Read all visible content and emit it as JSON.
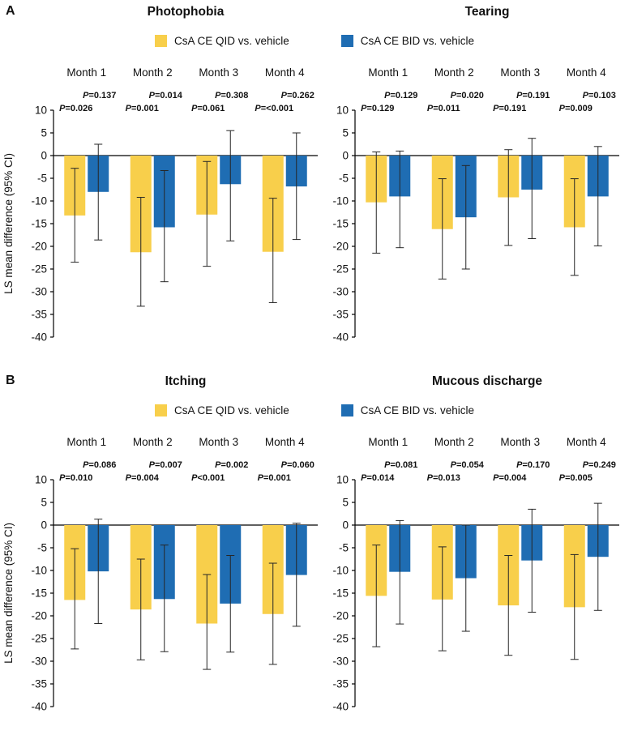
{
  "figure": {
    "panels": [
      {
        "label": "A"
      },
      {
        "label": "B"
      }
    ],
    "ylabel": "LS mean difference (95% CI)",
    "legend": [
      {
        "label": "CsA CE QID vs. vehicle",
        "color": "#F8CF4B"
      },
      {
        "label": "CsA CE BID vs. vehicle",
        "color": "#1F6DB3"
      }
    ]
  },
  "chart_data": [
    {
      "type": "bar",
      "panel": "A",
      "title": "Photophobia",
      "categories": [
        "Month 1",
        "Month 2",
        "Month 3",
        "Month 4"
      ],
      "ylabel": "LS mean difference (95% CI)",
      "ylim": [
        -40,
        10
      ],
      "yticks": [
        10,
        5,
        0,
        -5,
        -10,
        -15,
        -20,
        -25,
        -30,
        -35,
        -40
      ],
      "grid": false,
      "legend_position": "top",
      "series": [
        {
          "name": "CsA CE QID vs. vehicle",
          "color": "#F8CF4B",
          "values": [
            -13.2,
            -21.3,
            -13.0,
            -21.2
          ],
          "ci_low": [
            -23.5,
            -33.2,
            -24.4,
            -32.4
          ],
          "ci_high": [
            -2.8,
            -9.2,
            -1.3,
            -9.4
          ],
          "p_values": [
            "P=0.026",
            "P=0.001",
            "P=0.061",
            "P=<0.001"
          ]
        },
        {
          "name": "CsA CE BID vs. vehicle",
          "color": "#1F6DB3",
          "values": [
            -8.0,
            -15.8,
            -6.3,
            -6.8
          ],
          "ci_low": [
            -18.6,
            -27.8,
            -18.8,
            -18.5
          ],
          "ci_high": [
            2.5,
            -3.3,
            5.5,
            5.0
          ],
          "p_values": [
            "P=0.137",
            "P=0.014",
            "P=0.308",
            "P=0.262"
          ]
        }
      ]
    },
    {
      "type": "bar",
      "panel": "A",
      "title": "Tearing",
      "categories": [
        "Month 1",
        "Month 2",
        "Month 3",
        "Month 4"
      ],
      "ylabel": "LS mean difference (95% CI)",
      "ylim": [
        -40,
        10
      ],
      "yticks": [
        10,
        5,
        0,
        -5,
        -10,
        -15,
        -20,
        -25,
        -30,
        -35,
        -40
      ],
      "grid": false,
      "legend_position": "top",
      "series": [
        {
          "name": "CsA CE QID vs. vehicle",
          "color": "#F8CF4B",
          "values": [
            -10.3,
            -16.2,
            -9.2,
            -15.8
          ],
          "ci_low": [
            -21.5,
            -27.2,
            -19.8,
            -26.4
          ],
          "ci_high": [
            0.8,
            -5.1,
            1.3,
            -5.1
          ],
          "p_values": [
            "P=0.129",
            "P=0.011",
            "P=0.191",
            "P=0.009"
          ]
        },
        {
          "name": "CsA CE BID vs. vehicle",
          "color": "#1F6DB3",
          "values": [
            -9.0,
            -13.6,
            -7.5,
            -9.0
          ],
          "ci_low": [
            -20.3,
            -25.0,
            -18.3,
            -19.9
          ],
          "ci_high": [
            1.0,
            -2.2,
            3.8,
            2.0
          ],
          "p_values": [
            "P=0.129",
            "P=0.020",
            "P=0.191",
            "P=0.103"
          ]
        }
      ]
    },
    {
      "type": "bar",
      "panel": "B",
      "title": "Itching",
      "categories": [
        "Month 1",
        "Month 2",
        "Month 3",
        "Month 4"
      ],
      "ylabel": "LS mean difference (95% CI)",
      "ylim": [
        -40,
        10
      ],
      "yticks": [
        10,
        5,
        0,
        -5,
        -10,
        -15,
        -20,
        -25,
        -30,
        -35,
        -40
      ],
      "grid": false,
      "legend_position": "top",
      "series": [
        {
          "name": "CsA CE QID vs. vehicle",
          "color": "#F8CF4B",
          "values": [
            -16.5,
            -18.6,
            -21.7,
            -19.6
          ],
          "ci_low": [
            -27.3,
            -29.7,
            -31.8,
            -30.7
          ],
          "ci_high": [
            -5.2,
            -7.5,
            -10.9,
            -8.4
          ],
          "p_values": [
            "P=0.010",
            "P=0.004",
            "P<0.001",
            "P=0.001"
          ]
        },
        {
          "name": "CsA CE BID vs. vehicle",
          "color": "#1F6DB3",
          "values": [
            -10.2,
            -16.3,
            -17.3,
            -11.0
          ],
          "ci_low": [
            -21.7,
            -27.9,
            -28.0,
            -22.3
          ],
          "ci_high": [
            1.3,
            -4.4,
            -6.7,
            0.4
          ],
          "p_values": [
            "P=0.086",
            "P=0.007",
            "P=0.002",
            "P=0.060"
          ]
        }
      ]
    },
    {
      "type": "bar",
      "panel": "B",
      "title": "Mucous discharge",
      "categories": [
        "Month 1",
        "Month 2",
        "Month 3",
        "Month 4"
      ],
      "ylabel": "LS mean difference (95% CI)",
      "ylim": [
        -40,
        10
      ],
      "yticks": [
        10,
        5,
        0,
        -5,
        -10,
        -15,
        -20,
        -25,
        -30,
        -35,
        -40
      ],
      "grid": false,
      "legend_position": "top",
      "series": [
        {
          "name": "CsA CE QID vs. vehicle",
          "color": "#F8CF4B",
          "values": [
            -15.6,
            -16.4,
            -17.7,
            -18.1
          ],
          "ci_low": [
            -26.8,
            -27.7,
            -28.7,
            -29.6
          ],
          "ci_high": [
            -4.4,
            -4.8,
            -6.7,
            -6.5
          ],
          "p_values": [
            "P=0.014",
            "P=0.013",
            "P=0.004",
            "P=0.005"
          ]
        },
        {
          "name": "CsA CE BID vs. vehicle",
          "color": "#1F6DB3",
          "values": [
            -10.3,
            -11.7,
            -7.8,
            -7.0
          ],
          "ci_low": [
            -21.8,
            -23.4,
            -19.2,
            -18.8
          ],
          "ci_high": [
            1.0,
            0.0,
            3.5,
            4.8
          ],
          "p_values": [
            "P=0.081",
            "P=0.054",
            "P=0.170",
            "P=0.249"
          ]
        }
      ]
    }
  ]
}
